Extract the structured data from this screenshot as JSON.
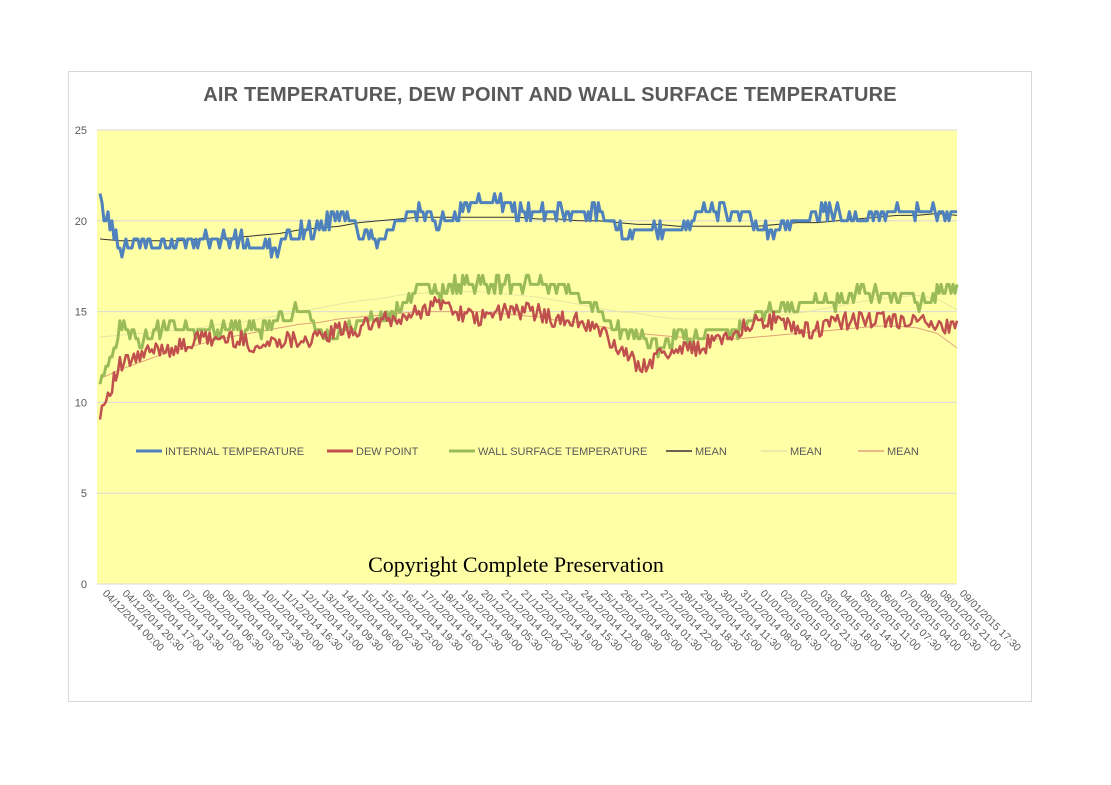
{
  "chart_data": {
    "type": "line",
    "title": "AIR TEMPERATURE, DEW POINT AND WALL SURFACE TEMPERATURE",
    "watermark": "Copyright Complete Preservation",
    "xlabel": "",
    "ylabel": "",
    "ylim": [
      0,
      25
    ],
    "yticks": [
      0,
      5,
      10,
      15,
      20,
      25
    ],
    "plot_background": "#ffffa6",
    "grid": true,
    "legend_position": "inside-middle",
    "x": [
      "04/12/2014 00:00",
      "04/12/2014 20:30",
      "05/12/2014 17:00",
      "06/12/2014 13:30",
      "07/12/2014 10:00",
      "08/12/2014 06:30",
      "09/12/2014 03:00",
      "09/12/2014 23:30",
      "10/12/2014 20:00",
      "11/12/2014 16:30",
      "12/12/2014 13:00",
      "13/12/2014 09:30",
      "14/12/2014 06:00",
      "15/12/2014 02:30",
      "15/12/2014 23:00",
      "16/12/2014 19:30",
      "17/12/2014 16:00",
      "18/12/2014 12:30",
      "19/12/2014 09:00",
      "20/12/2014 05:30",
      "21/12/2014 02:00",
      "21/12/2014 22:30",
      "22/12/2014 19:00",
      "23/12/2014 15:30",
      "24/12/2014 12:00",
      "25/12/2014 08:30",
      "26/12/2014 05:00",
      "27/12/2014 01:30",
      "27/12/2014 22:00",
      "28/12/2014 18:30",
      "29/12/2014 15:00",
      "30/12/2014 11:30",
      "31/12/2014 08:00",
      "01/01/2015 04:30",
      "02/01/2015 01:00",
      "02/01/2015 21:30",
      "03/01/2015 18:00",
      "04/01/2015 14:30",
      "05/01/2015 11:00",
      "06/01/2015 07:30",
      "07/01/2015 04:00",
      "08/01/2015 00:30",
      "08/01/2015 21:00",
      "09/01/2015 17:30"
    ],
    "series": [
      {
        "name": "INTERNAL TEMPERATURE",
        "color": "#4f81bd",
        "style": "solid",
        "width": 3,
        "values": [
          21,
          18.5,
          19,
          18.5,
          19,
          19,
          19,
          19,
          18.5,
          18.5,
          19.5,
          19.5,
          20.5,
          19.5,
          19,
          20,
          20.5,
          20,
          20.5,
          21,
          21,
          20.5,
          20.5,
          20.5,
          20.5,
          20.5,
          19.5,
          19.5,
          19.5,
          19.5,
          20.5,
          20.5,
          20.5,
          19.5,
          19.5,
          20,
          20.5,
          20.5,
          20,
          20.5,
          20.5,
          20.5,
          20.5,
          20.5
        ]
      },
      {
        "name": "DEW POINT",
        "color": "#c0504d",
        "style": "solid",
        "width": 2.5,
        "values": [
          9.5,
          12,
          12.5,
          13,
          13,
          13.5,
          13.5,
          13.5,
          13,
          13.5,
          13.5,
          13.5,
          14,
          14,
          14.5,
          14.5,
          15,
          15.5,
          15,
          14.5,
          15,
          15,
          15,
          14.5,
          14.5,
          14,
          13,
          12,
          12.5,
          13,
          13,
          13.5,
          14,
          14.5,
          14.5,
          14,
          14,
          14.5,
          14.5,
          14.5,
          14.5,
          14.5,
          14,
          14.5
        ]
      },
      {
        "name": "WALL SURFACE TEMPERATURE",
        "color": "#9bbb59",
        "style": "solid",
        "width": 3,
        "values": [
          11,
          14,
          13.5,
          14,
          14,
          14,
          14,
          14,
          14,
          14.5,
          15,
          14,
          13.5,
          14.5,
          14.5,
          15,
          16.5,
          16,
          16.5,
          16.5,
          16.5,
          16.5,
          16.5,
          16.5,
          16,
          15,
          14,
          13.5,
          13,
          13.5,
          13.5,
          14,
          14,
          15,
          15,
          15.5,
          15.5,
          15.5,
          16,
          16,
          16,
          15.5,
          16,
          16.5
        ]
      },
      {
        "name": "MEAN",
        "color": "#333333",
        "style": "trend",
        "width": 1,
        "values": [
          19,
          18.9,
          18.9,
          18.9,
          18.9,
          19,
          19,
          19.1,
          19.2,
          19.3,
          19.5,
          19.6,
          19.7,
          19.9,
          20,
          20.1,
          20.2,
          20.2,
          20.2,
          20.2,
          20.2,
          20.2,
          20.1,
          20.1,
          20,
          20,
          19.9,
          19.8,
          19.8,
          19.7,
          19.7,
          19.7,
          19.7,
          19.7,
          19.8,
          19.9,
          19.9,
          20,
          20.1,
          20.2,
          20.3,
          20.3,
          20.4,
          20.3
        ]
      },
      {
        "name": "MEAN",
        "color": "#e6e6a3",
        "style": "trend",
        "width": 1,
        "values": [
          13.6,
          13.7,
          13.8,
          13.9,
          14,
          14.1,
          14.3,
          14.4,
          14.6,
          14.8,
          15,
          15.2,
          15.4,
          15.6,
          15.7,
          15.9,
          16,
          16.1,
          16.1,
          16.1,
          16,
          15.9,
          15.8,
          15.6,
          15.4,
          15.2,
          15,
          14.9,
          14.7,
          14.6,
          14.6,
          14.6,
          14.6,
          14.7,
          14.8,
          14.9,
          15.1,
          15.3,
          15.5,
          15.7,
          15.8,
          15.9,
          15.7,
          15.1
        ]
      },
      {
        "name": "MEAN",
        "color": "#e2a37a",
        "style": "trend",
        "width": 1,
        "values": [
          11.3,
          11.8,
          12.2,
          12.6,
          12.9,
          13.2,
          13.5,
          13.7,
          13.9,
          14.1,
          14.3,
          14.4,
          14.6,
          14.7,
          14.8,
          14.9,
          15,
          15,
          15,
          15,
          14.9,
          14.8,
          14.7,
          14.5,
          14.4,
          14.2,
          14,
          13.8,
          13.7,
          13.6,
          13.5,
          13.5,
          13.5,
          13.6,
          13.7,
          13.8,
          13.9,
          14,
          14.1,
          14.2,
          14.2,
          14.1,
          13.8,
          13
        ]
      }
    ]
  }
}
